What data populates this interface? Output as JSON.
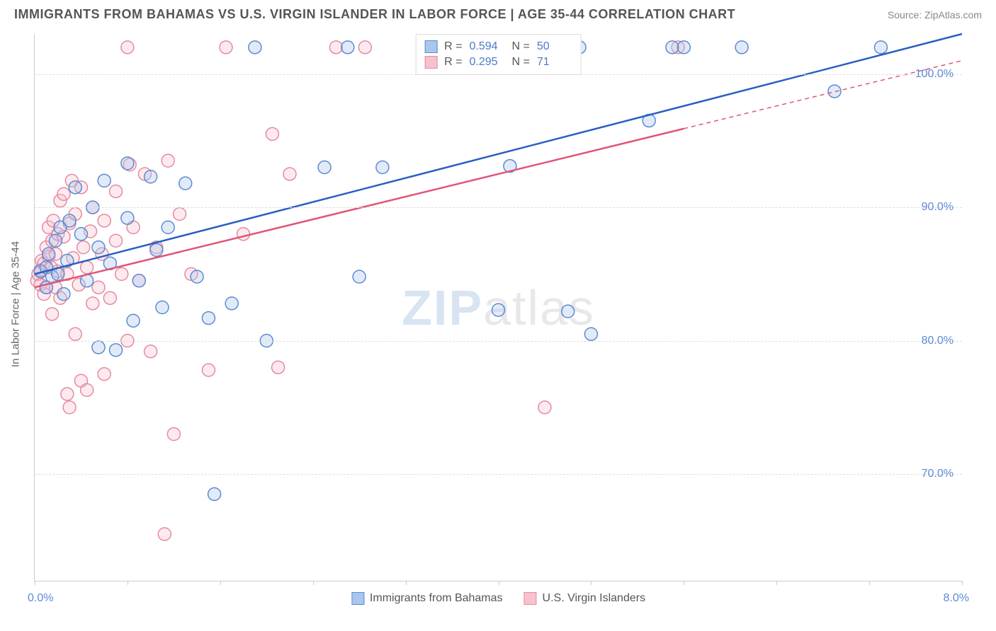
{
  "title": "IMMIGRANTS FROM BAHAMAS VS U.S. VIRGIN ISLANDER IN LABOR FORCE | AGE 35-44 CORRELATION CHART",
  "source": "Source: ZipAtlas.com",
  "y_axis_label": "In Labor Force | Age 35-44",
  "watermark_bold": "ZIP",
  "watermark_light": "atlas",
  "chart": {
    "type": "scatter-with-regression",
    "x_domain": [
      0.0,
      8.0
    ],
    "y_domain": [
      62.0,
      103.0
    ],
    "x_min_label": "0.0%",
    "x_max_label": "8.0%",
    "y_ticks": [
      70.0,
      80.0,
      90.0,
      100.0
    ],
    "y_tick_labels": [
      "70.0%",
      "80.0%",
      "90.0%",
      "100.0%"
    ],
    "x_tick_positions": [
      0.0,
      0.8,
      1.6,
      2.4,
      3.2,
      4.0,
      4.8,
      5.6,
      6.4,
      7.2,
      8.0
    ],
    "grid_color": "#dddddd",
    "background_color": "#ffffff",
    "marker_radius": 9,
    "marker_stroke_width": 1.5,
    "marker_fill_opacity": 0.35,
    "line_width": 2.5,
    "series": [
      {
        "name": "Immigrants from Bahamas",
        "color_fill": "#a9c7ec",
        "color_stroke": "#5b8bd4",
        "line_color": "#2a5fc1",
        "R": "0.594",
        "N": "50",
        "regression": {
          "x1": 0.0,
          "y1": 85.0,
          "x2": 8.0,
          "y2": 103.0,
          "dashed_from_x": null
        },
        "points": [
          [
            0.05,
            85.2
          ],
          [
            0.1,
            85.5
          ],
          [
            0.1,
            84.0
          ],
          [
            0.12,
            86.5
          ],
          [
            0.15,
            84.8
          ],
          [
            0.18,
            87.5
          ],
          [
            0.2,
            85.0
          ],
          [
            0.22,
            88.5
          ],
          [
            0.25,
            83.5
          ],
          [
            0.28,
            86.0
          ],
          [
            0.3,
            89.0
          ],
          [
            0.35,
            91.5
          ],
          [
            0.4,
            88.0
          ],
          [
            0.45,
            84.5
          ],
          [
            0.5,
            90.0
          ],
          [
            0.55,
            79.5
          ],
          [
            0.55,
            87.0
          ],
          [
            0.6,
            92.0
          ],
          [
            0.65,
            85.8
          ],
          [
            0.7,
            79.3
          ],
          [
            0.8,
            93.3
          ],
          [
            0.8,
            89.2
          ],
          [
            0.85,
            81.5
          ],
          [
            0.9,
            84.5
          ],
          [
            1.0,
            92.3
          ],
          [
            1.05,
            86.8
          ],
          [
            1.1,
            82.5
          ],
          [
            1.15,
            88.5
          ],
          [
            1.3,
            91.8
          ],
          [
            1.4,
            84.8
          ],
          [
            1.5,
            81.7
          ],
          [
            1.55,
            68.5
          ],
          [
            1.7,
            82.8
          ],
          [
            1.9,
            102.0
          ],
          [
            2.0,
            80.0
          ],
          [
            2.5,
            93.0
          ],
          [
            2.7,
            102.0
          ],
          [
            2.8,
            84.8
          ],
          [
            3.0,
            93.0
          ],
          [
            4.0,
            82.3
          ],
          [
            4.1,
            93.1
          ],
          [
            4.6,
            82.2
          ],
          [
            4.7,
            102.0
          ],
          [
            4.8,
            80.5
          ],
          [
            5.3,
            96.5
          ],
          [
            5.5,
            102.0
          ],
          [
            5.6,
            102.0
          ],
          [
            6.1,
            102.0
          ],
          [
            6.9,
            98.7
          ],
          [
            7.3,
            102.0
          ]
        ]
      },
      {
        "name": "U.S. Virgin Islanders",
        "color_fill": "#f5c2cd",
        "color_stroke": "#e68aa0",
        "line_color": "#e05577",
        "R": "0.295",
        "N": "71",
        "regression": {
          "x1": 0.0,
          "y1": 84.0,
          "x2": 8.0,
          "y2": 101.0,
          "dashed_from_x": 5.6
        },
        "points": [
          [
            0.02,
            84.5
          ],
          [
            0.03,
            85.0
          ],
          [
            0.05,
            85.3
          ],
          [
            0.05,
            84.2
          ],
          [
            0.06,
            86.0
          ],
          [
            0.08,
            85.8
          ],
          [
            0.08,
            83.5
          ],
          [
            0.1,
            87.0
          ],
          [
            0.1,
            84.0
          ],
          [
            0.12,
            86.3
          ],
          [
            0.12,
            88.5
          ],
          [
            0.14,
            85.5
          ],
          [
            0.15,
            82.0
          ],
          [
            0.15,
            87.5
          ],
          [
            0.16,
            89.0
          ],
          [
            0.18,
            86.5
          ],
          [
            0.18,
            84.0
          ],
          [
            0.2,
            88.0
          ],
          [
            0.2,
            85.2
          ],
          [
            0.22,
            90.5
          ],
          [
            0.22,
            83.2
          ],
          [
            0.25,
            87.8
          ],
          [
            0.25,
            91.0
          ],
          [
            0.28,
            85.0
          ],
          [
            0.28,
            76.0
          ],
          [
            0.3,
            88.8
          ],
          [
            0.3,
            75.0
          ],
          [
            0.32,
            92.0
          ],
          [
            0.33,
            86.2
          ],
          [
            0.35,
            80.5
          ],
          [
            0.35,
            89.5
          ],
          [
            0.38,
            84.2
          ],
          [
            0.4,
            77.0
          ],
          [
            0.4,
            91.5
          ],
          [
            0.42,
            87.0
          ],
          [
            0.45,
            85.5
          ],
          [
            0.45,
            76.3
          ],
          [
            0.48,
            88.2
          ],
          [
            0.5,
            82.8
          ],
          [
            0.5,
            90.0
          ],
          [
            0.55,
            84.0
          ],
          [
            0.58,
            86.5
          ],
          [
            0.6,
            77.5
          ],
          [
            0.6,
            89.0
          ],
          [
            0.65,
            83.2
          ],
          [
            0.7,
            87.5
          ],
          [
            0.7,
            91.2
          ],
          [
            0.75,
            85.0
          ],
          [
            0.8,
            80.0
          ],
          [
            0.8,
            102.0
          ],
          [
            0.82,
            93.2
          ],
          [
            0.85,
            88.5
          ],
          [
            0.9,
            84.5
          ],
          [
            0.95,
            92.5
          ],
          [
            1.0,
            79.2
          ],
          [
            1.05,
            87.0
          ],
          [
            1.12,
            65.5
          ],
          [
            1.15,
            93.5
          ],
          [
            1.2,
            73.0
          ],
          [
            1.25,
            89.5
          ],
          [
            1.35,
            85.0
          ],
          [
            1.5,
            77.8
          ],
          [
            1.65,
            102.0
          ],
          [
            1.8,
            88.0
          ],
          [
            2.05,
            95.5
          ],
          [
            2.1,
            78.0
          ],
          [
            2.2,
            92.5
          ],
          [
            2.6,
            102.0
          ],
          [
            2.85,
            102.0
          ],
          [
            4.4,
            75.0
          ],
          [
            5.55,
            102.0
          ]
        ]
      }
    ]
  },
  "legend_bottom": [
    {
      "label": "Immigrants from Bahamas",
      "fill": "#a9c7ec",
      "stroke": "#5b8bd4"
    },
    {
      "label": "U.S. Virgin Islanders",
      "fill": "#f5c2cd",
      "stroke": "#e68aa0"
    }
  ],
  "legend_top_labels": {
    "R": "R =",
    "N": "N ="
  }
}
